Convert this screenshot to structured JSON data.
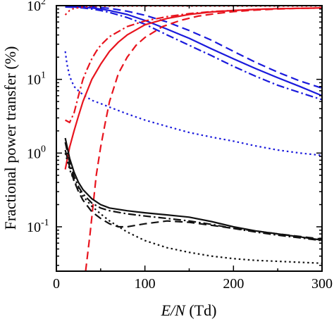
{
  "chart_data": {
    "type": "line",
    "title": "",
    "xlabel_italic": "E/N",
    "xlabel_rest": " (Td)",
    "ylabel": "Fractional power transfer (%)",
    "xlim": [
      0,
      300
    ],
    "ylim": [
      0.025,
      100
    ],
    "yscale": "log",
    "grid": false,
    "legend": "none",
    "x_ticks": [
      0,
      100,
      200,
      300
    ],
    "x_tick_labels": [
      "0",
      "100",
      "200",
      "300"
    ],
    "y_ticks": [
      0.1,
      1,
      10,
      100
    ],
    "y_tick_bases": [
      "10",
      "10",
      "10",
      "10"
    ],
    "y_tick_exponents": [
      "-1",
      "0",
      "1",
      "2"
    ],
    "series": [
      {
        "color": "#1a1adc",
        "dash": "solid",
        "x": [
          10,
          20,
          30,
          40,
          50,
          60,
          80,
          100,
          125,
          150,
          175,
          200,
          225,
          250,
          275,
          300
        ],
        "y": [
          96,
          96,
          95,
          93,
          90,
          86,
          76,
          63,
          48,
          36,
          26,
          19,
          14,
          10.5,
          8,
          6
        ]
      },
      {
        "color": "#1a1adc",
        "dash": "dashed",
        "x": [
          10,
          20,
          30,
          40,
          50,
          60,
          80,
          100,
          125,
          150,
          175,
          200,
          225,
          250,
          275,
          300
        ],
        "y": [
          98,
          98,
          97,
          96,
          94,
          92,
          84,
          74,
          60,
          46,
          34,
          24,
          17,
          12.5,
          9.5,
          7.6
        ]
      },
      {
        "color": "#1a1adc",
        "dash": "dashdot",
        "x": [
          10,
          20,
          30,
          40,
          50,
          60,
          80,
          100,
          125,
          150,
          175,
          200,
          225,
          250,
          275,
          300
        ],
        "y": [
          96,
          95,
          93,
          90,
          86,
          81,
          69,
          56,
          40,
          29,
          21,
          15,
          11,
          8.3,
          6.6,
          5.3
        ]
      },
      {
        "color": "#1a1adc",
        "dash": "dotted",
        "x": [
          10,
          12,
          15,
          20,
          25,
          30,
          40,
          50,
          60,
          80,
          100,
          125,
          150,
          175,
          200,
          225,
          250,
          275,
          300
        ],
        "y": [
          24,
          16,
          11,
          8,
          7,
          6.2,
          5.2,
          4.7,
          4.2,
          3.4,
          2.8,
          2.3,
          1.9,
          1.65,
          1.45,
          1.25,
          1.1,
          1.0,
          0.93
        ]
      },
      {
        "color": "#e8141e",
        "dash": "solid",
        "x": [
          10,
          15,
          20,
          25,
          30,
          40,
          50,
          60,
          70,
          80,
          100,
          125,
          150,
          175,
          200,
          225,
          250,
          275,
          300
        ],
        "y": [
          0.6,
          1.2,
          2.0,
          3.2,
          5.0,
          10,
          16,
          24,
          32,
          40,
          55,
          67,
          76,
          82,
          86,
          89,
          91,
          92,
          93
        ]
      },
      {
        "color": "#e8141e",
        "dash": "dashed",
        "x": [
          33,
          38,
          45,
          50,
          55,
          60,
          70,
          80,
          90,
          100,
          120,
          140,
          160,
          180,
          200,
          225,
          250,
          275,
          300
        ],
        "y": [
          0.025,
          0.08,
          0.5,
          1.2,
          2.5,
          5,
          12,
          20,
          29,
          37,
          52,
          63,
          72,
          78,
          83,
          87,
          90,
          92,
          93
        ]
      },
      {
        "color": "#e8141e",
        "dash": "dashdot",
        "x": [
          10,
          15,
          20,
          25,
          30,
          35,
          40,
          45,
          50,
          60,
          80,
          100,
          125,
          150,
          175,
          200,
          225,
          250,
          275,
          300
        ],
        "y": [
          2.8,
          2.6,
          3.5,
          6,
          10,
          14,
          19,
          24,
          29,
          38,
          52,
          62,
          71,
          78,
          83,
          86,
          89,
          91,
          92,
          93
        ]
      },
      {
        "color": "#e8141e",
        "dash": "dotted",
        "x": [
          10,
          15,
          20,
          30,
          40,
          60,
          80,
          100,
          150,
          200,
          250,
          300
        ],
        "y": [
          75,
          86,
          92,
          96,
          97.5,
          98.5,
          99,
          99,
          99,
          99,
          99,
          99
        ]
      },
      {
        "color": "#111111",
        "dash": "solid",
        "x": [
          10,
          15,
          20,
          25,
          30,
          40,
          50,
          60,
          80,
          100,
          125,
          150,
          175,
          200,
          225,
          250,
          275,
          300
        ],
        "y": [
          1.6,
          0.85,
          0.55,
          0.4,
          0.32,
          0.24,
          0.2,
          0.18,
          0.165,
          0.155,
          0.145,
          0.135,
          0.118,
          0.1,
          0.088,
          0.08,
          0.073,
          0.066
        ]
      },
      {
        "color": "#111111",
        "dash": "dashed",
        "x": [
          10,
          15,
          20,
          25,
          30,
          40,
          50,
          60,
          70,
          80,
          100,
          125,
          150,
          175,
          200,
          225,
          250,
          275,
          300
        ],
        "y": [
          1.1,
          0.65,
          0.42,
          0.3,
          0.23,
          0.16,
          0.13,
          0.11,
          0.1,
          0.1,
          0.11,
          0.12,
          0.115,
          0.105,
          0.095,
          0.088,
          0.08,
          0.074,
          0.068
        ]
      },
      {
        "color": "#111111",
        "dash": "dashdot",
        "x": [
          10,
          15,
          20,
          25,
          30,
          40,
          50,
          60,
          80,
          100,
          125,
          150,
          175,
          200,
          225,
          250,
          275,
          300
        ],
        "y": [
          1.4,
          0.75,
          0.48,
          0.35,
          0.28,
          0.21,
          0.18,
          0.165,
          0.15,
          0.14,
          0.13,
          0.12,
          0.108,
          0.095,
          0.085,
          0.077,
          0.071,
          0.065
        ]
      },
      {
        "color": "#111111",
        "dash": "dotted",
        "x": [
          10,
          15,
          20,
          25,
          30,
          40,
          50,
          60,
          80,
          100,
          125,
          150,
          175,
          200,
          225,
          250,
          275,
          300
        ],
        "y": [
          1.0,
          0.6,
          0.42,
          0.32,
          0.26,
          0.19,
          0.15,
          0.12,
          0.085,
          0.065,
          0.052,
          0.045,
          0.04,
          0.037,
          0.035,
          0.034,
          0.033,
          0.032
        ]
      }
    ]
  }
}
